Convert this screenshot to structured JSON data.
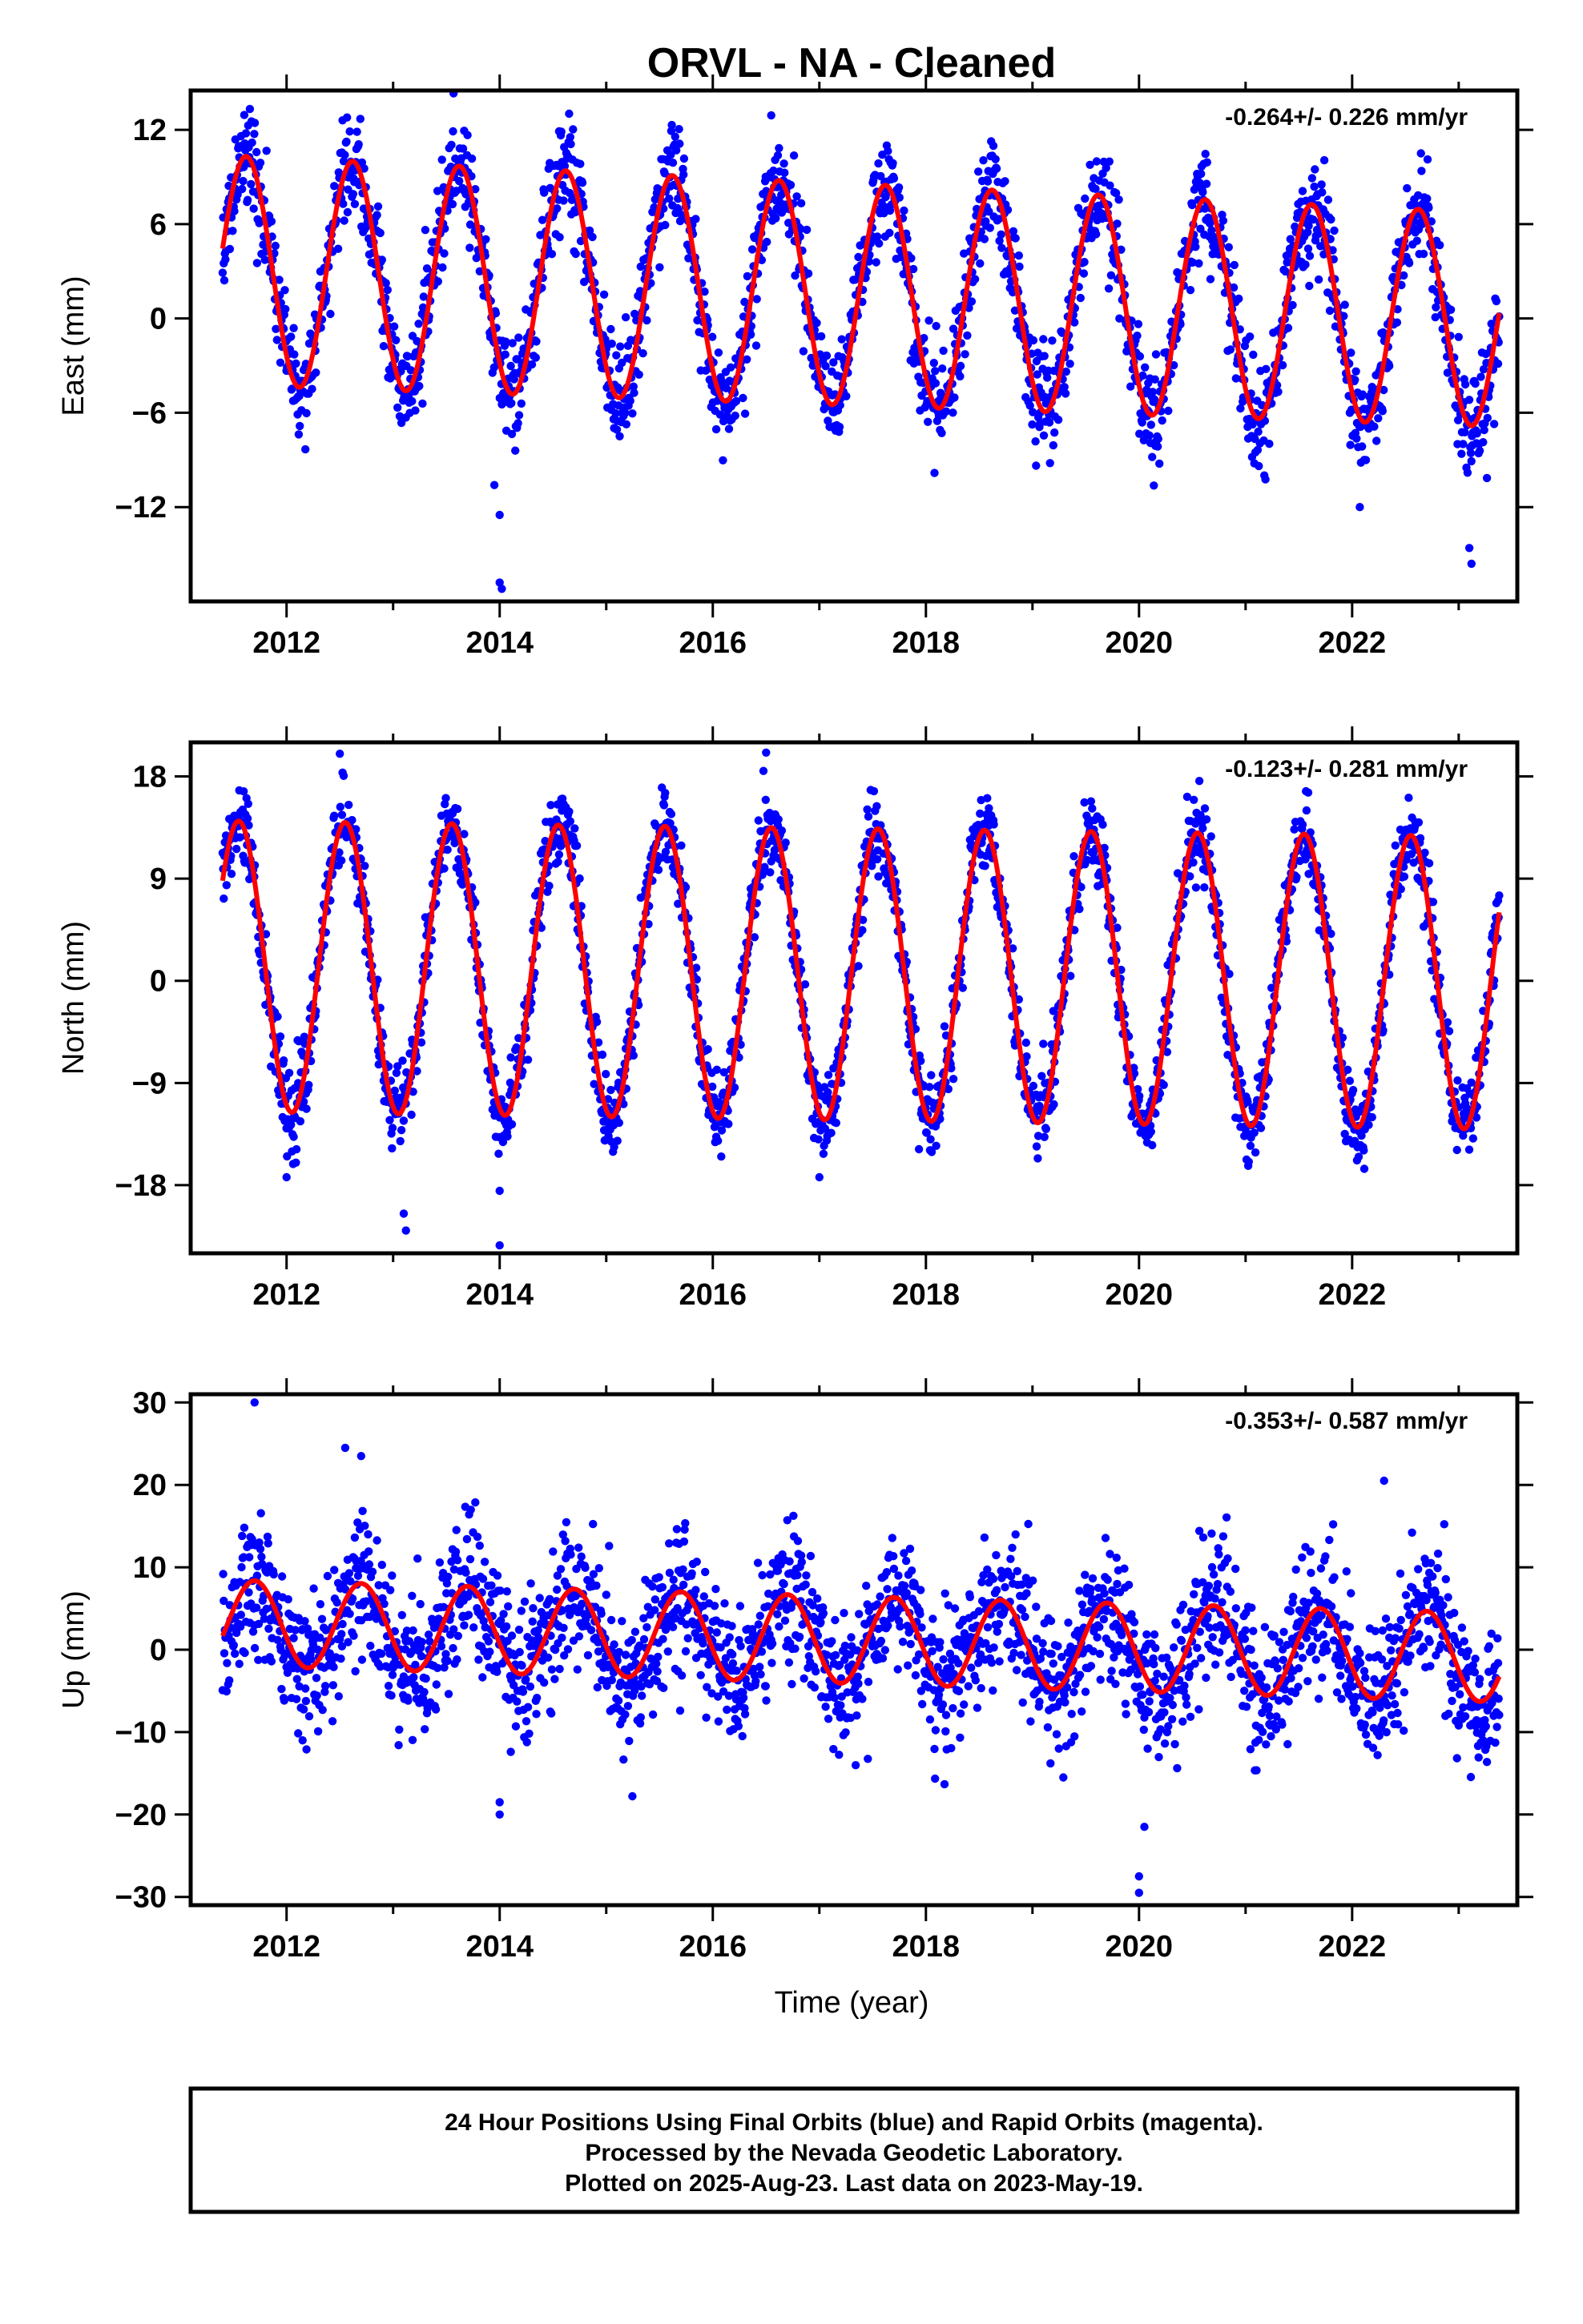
{
  "chart_data": {
    "type": "scatter",
    "title": "ORVL  - NA - Cleaned",
    "xlabel": "Time (year)",
    "x_ticks": [
      2012,
      2014,
      2016,
      2018,
      2020,
      2022
    ],
    "x_tick_labels": [
      "2012",
      "2014",
      "2016",
      "2018",
      "2020",
      "2022"
    ],
    "xlim": [
      2011.1,
      2023.55
    ],
    "data_start": 2011.4,
    "data_end": 2023.38,
    "colors": {
      "observations": "#0000ff",
      "model_fit": "#ff0000"
    },
    "panels": [
      {
        "ylabel": "East (mm)",
        "ylim": [
          -18.0,
          14.5
        ],
        "y_ticks": [
          12,
          6,
          0,
          -6,
          -12
        ],
        "y_tick_labels": [
          "12",
          "6",
          "0",
          "−6",
          "−12"
        ],
        "rate": "-0.264+/- 0.226 mm/yr",
        "fit": {
          "offset": 1.6,
          "trend": -0.264,
          "amplitude_start": 7.3,
          "amplitude_end": 6.8,
          "peak_phase": 0.62
        },
        "scatter_std": 1.6,
        "outliers": [
          [
            2014.0,
            -16.8
          ],
          [
            2014.0,
            -12.5
          ],
          [
            2013.95,
            -10.6
          ],
          [
            2023.1,
            -14.6
          ],
          [
            2023.12,
            -15.6
          ],
          [
            2014.02,
            -17.2
          ]
        ]
      },
      {
        "ylabel": "North (mm)",
        "ylim": [
          -24.0,
          21.0
        ],
        "y_ticks": [
          18,
          9,
          0,
          -9,
          -18
        ],
        "y_tick_labels": [
          "18",
          "9",
          "0",
          "−9",
          "−18"
        ],
        "rate": "-0.123+/- 0.281 mm/yr",
        "fit": {
          "offset": 0.6,
          "trend": -0.123,
          "amplitude_start": 12.8,
          "amplitude_end": 12.9,
          "peak_phase": 0.55
        },
        "scatter_std": 1.8,
        "outliers": [
          [
            2013.1,
            -20.5
          ],
          [
            2013.12,
            -22.0
          ],
          [
            2014.0,
            -23.3
          ],
          [
            2014.0,
            -18.5
          ],
          [
            2012.0,
            -17.3
          ],
          [
            2017.0,
            -17.3
          ],
          [
            2012.5,
            20.0
          ],
          [
            2016.5,
            20.1
          ]
        ]
      },
      {
        "ylabel": "Up (mm)",
        "ylim": [
          -31.0,
          31.0
        ],
        "y_ticks": [
          30,
          20,
          10,
          0,
          -10,
          -20,
          -30
        ],
        "y_tick_labels": [
          "30",
          "20",
          "10",
          "0",
          "−10",
          "−20",
          "−30"
        ],
        "rate": "-0.353+/- 0.587 mm/yr",
        "fit": {
          "offset": 1.3,
          "trend": -0.353,
          "amplitude_start": 5.2,
          "amplitude_end": 5.4,
          "peak_phase": 0.7
        },
        "scatter_std": 4.2,
        "outliers": [
          [
            2011.7,
            30.0
          ],
          [
            2012.55,
            24.5
          ],
          [
            2012.7,
            23.5
          ],
          [
            2022.3,
            20.5
          ],
          [
            2014.0,
            -20.0
          ],
          [
            2014.0,
            -18.5
          ],
          [
            2020.0,
            -29.5
          ],
          [
            2020.0,
            -27.5
          ],
          [
            2020.05,
            -21.5
          ],
          [
            2012.15,
            -11.0
          ]
        ]
      }
    ]
  },
  "footer": {
    "line1": "24 Hour Positions Using Final Orbits (blue) and Rapid Orbits (magenta).",
    "line2": "Processed by the Nevada Geodetic Laboratory.",
    "line3": "Plotted on 2025-Aug-23. Last data on 2023-May-19."
  }
}
